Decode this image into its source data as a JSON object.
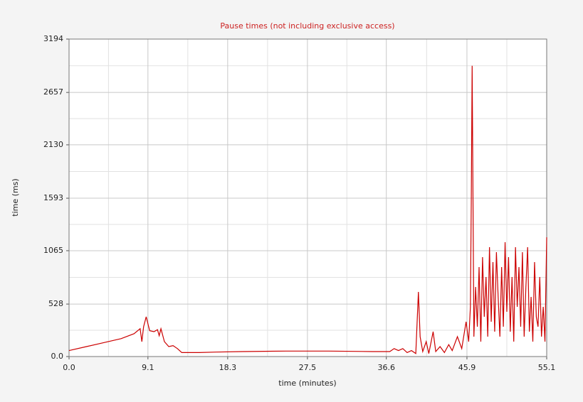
{
  "chart_data": {
    "type": "line",
    "title": "Pause times (not including exclusive access)",
    "x_label": "time (minutes)",
    "y_label": "time (ms)",
    "xlim": [
      0,
      55.1
    ],
    "ylim": [
      0,
      3194
    ],
    "xticks": [
      {
        "value": 0,
        "label": "0.0"
      },
      9.1,
      18.3,
      27.5,
      36.6,
      45.9,
      55.1
    ],
    "yticks": [
      {
        "value": 0,
        "label": "0.0"
      },
      528,
      1065,
      1593,
      2130,
      2657,
      3194
    ],
    "grid": true,
    "minor_grid": true,
    "series": [
      {
        "name": "Pause times",
        "color": "#cc0000",
        "x": [
          0,
          2,
          4,
          6,
          7.5,
          8.2,
          8.4,
          8.6,
          8.9,
          9.3,
          9.8,
          10.2,
          10.4,
          10.6,
          11,
          11.5,
          12,
          12.5,
          13,
          15,
          17,
          20,
          25,
          30,
          35,
          37,
          37.5,
          38,
          38.5,
          39,
          39.5,
          40,
          40.3,
          40.5,
          40.8,
          41.2,
          41.5,
          42,
          42.3,
          42.8,
          43.3,
          43.8,
          44.2,
          44.8,
          45.3,
          45.8,
          46.1,
          46.3,
          46.4,
          46.5,
          46.7,
          46.9,
          47.1,
          47.3,
          47.5,
          47.7,
          47.9,
          48.1,
          48.3,
          48.5,
          48.7,
          48.9,
          49.1,
          49.3,
          49.5,
          49.7,
          49.9,
          50.1,
          50.3,
          50.5,
          50.7,
          50.9,
          51.1,
          51.3,
          51.5,
          51.7,
          51.9,
          52.1,
          52.3,
          52.5,
          52.7,
          52.9,
          53.1,
          53.3,
          53.5,
          53.7,
          53.9,
          54.1,
          54.3,
          54.5,
          54.7,
          54.9,
          55.1
        ],
        "values": [
          60,
          100,
          140,
          180,
          230,
          280,
          150,
          300,
          400,
          260,
          250,
          270,
          210,
          280,
          150,
          100,
          110,
          80,
          40,
          40,
          45,
          50,
          55,
          55,
          50,
          50,
          80,
          60,
          80,
          40,
          60,
          30,
          650,
          200,
          50,
          150,
          30,
          250,
          50,
          100,
          40,
          120,
          60,
          200,
          80,
          350,
          150,
          500,
          1550,
          2925,
          200,
          700,
          300,
          900,
          150,
          1000,
          400,
          800,
          200,
          1100,
          350,
          950,
          250,
          1050,
          600,
          200,
          900,
          300,
          1150,
          450,
          1000,
          250,
          800,
          150,
          1100,
          500,
          900,
          300,
          1050,
          200,
          700,
          1100,
          250,
          600,
          150,
          950,
          400,
          300,
          800,
          200,
          500,
          150,
          1200
        ]
      }
    ]
  }
}
